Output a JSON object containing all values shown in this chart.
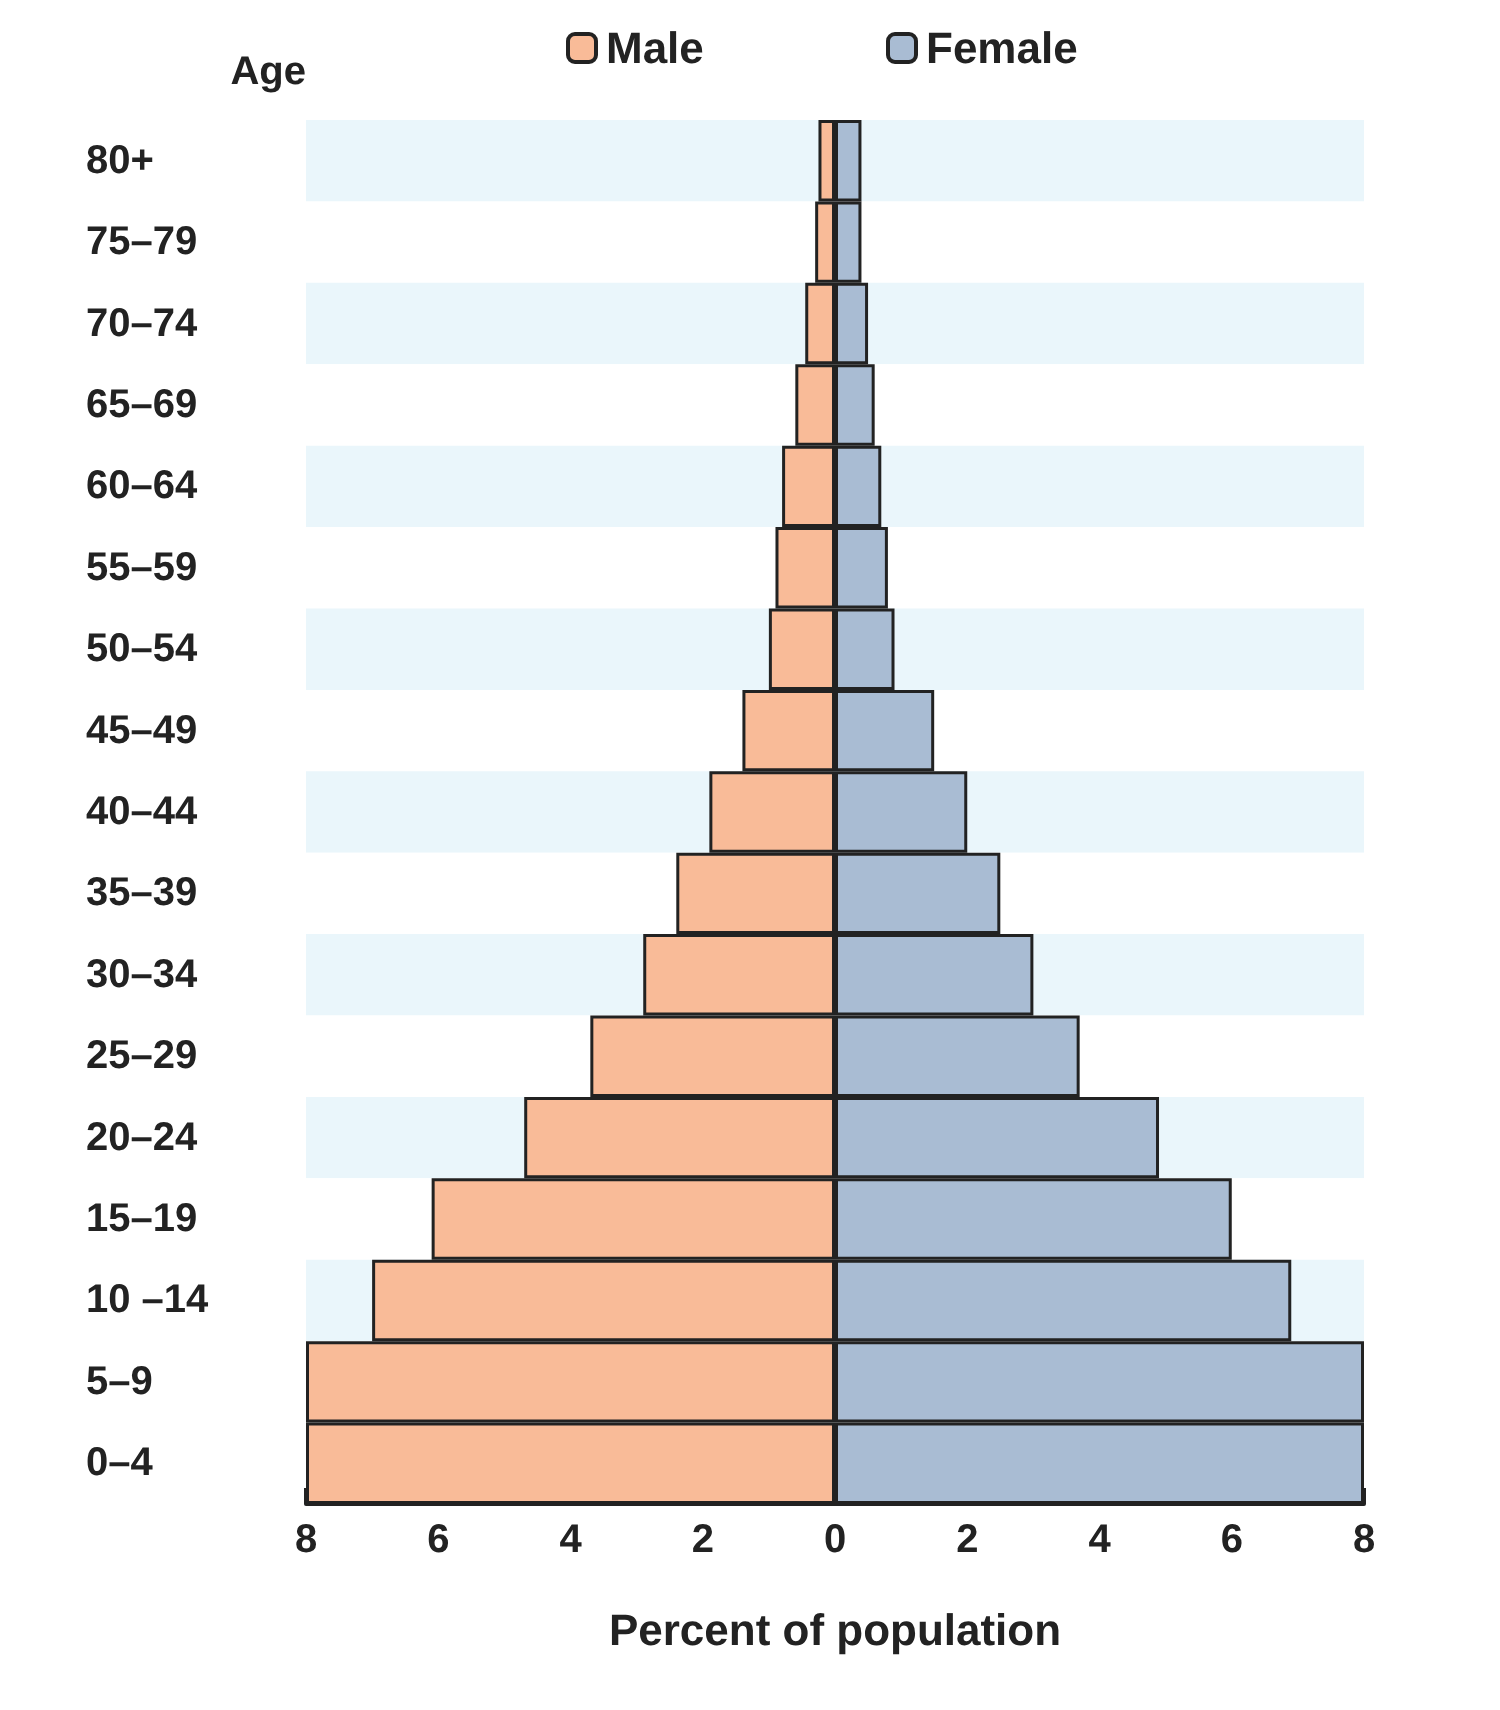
{
  "chart_data": {
    "type": "bar",
    "orientation": "horizontal",
    "xlabel": "Percent of population",
    "ylabel": "Age",
    "categories": [
      "80+",
      "75–79",
      "70–74",
      "65–69",
      "60–64",
      "55–59",
      "50–54",
      "45–49",
      "40–44",
      "35–39",
      "30–34",
      "25–29",
      "20–24",
      "15–19",
      "10 –14",
      "5–9",
      "0–4"
    ],
    "series": [
      {
        "name": "Male",
        "color": "#f9bb98",
        "values": [
          -0.25,
          -0.3,
          -0.45,
          -0.6,
          -0.8,
          -0.9,
          -1.0,
          -1.4,
          -1.9,
          -2.4,
          -2.9,
          -3.7,
          -4.7,
          -6.1,
          -7.0,
          -8.0,
          -8.0
        ]
      },
      {
        "name": "Female",
        "color": "#a9bcd3",
        "values": [
          0.4,
          0.4,
          0.5,
          0.6,
          0.7,
          0.8,
          0.9,
          1.5,
          2.0,
          2.5,
          3.0,
          3.7,
          4.9,
          6.0,
          6.9,
          8.0,
          8.0
        ]
      }
    ],
    "xlim": [
      -8,
      8
    ],
    "xticks": [
      {
        "value": -8,
        "label": "8"
      },
      {
        "value": -6,
        "label": "6"
      },
      {
        "value": -4,
        "label": "4"
      },
      {
        "value": -2,
        "label": "2"
      },
      0,
      2,
      4,
      6,
      8
    ],
    "legend": "top",
    "grid": false,
    "stacked": true
  }
}
